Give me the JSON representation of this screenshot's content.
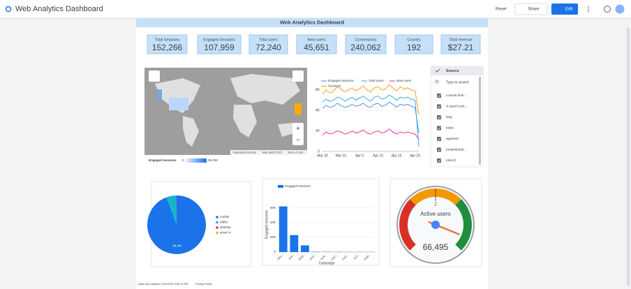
{
  "header": {
    "title": "Web Analytics Dashboard",
    "buttons": [
      "Reset",
      "Share",
      "Edit"
    ]
  },
  "report": {
    "title": "Web Analytics Dashboard",
    "kpis": [
      {
        "label": "Total Sessions",
        "value": "152,266"
      },
      {
        "label": "Engaged Sessions",
        "value": "107,959"
      },
      {
        "label": "Total users",
        "value": "72,240"
      },
      {
        "label": "New users",
        "value": "45,651"
      },
      {
        "label": "Conversions",
        "value": "240,062"
      },
      {
        "label": "Country",
        "value": "192"
      },
      {
        "label": "Total revenue",
        "value": "$27.21"
      }
    ],
    "map": {
      "legend_title": "Engaged sessions",
      "legend_min": "0",
      "legend_max": "39,455",
      "attribution": [
        "Keyboard shortcuts",
        "Map data ©2022",
        "Terms of Use"
      ]
    },
    "source_filter": {
      "title": "Source",
      "search_placeholder": "Type to search",
      "options": [
        "console.fireb...",
        "cl.search.yah...",
        "bing",
        "baidu",
        "apptimen",
        "(unattributab...",
        "(direct)"
      ]
    },
    "footer": {
      "updated": "Data Last Updated: 4/22/2022 5:56:14 PM",
      "privacy": "Privacy Policy"
    }
  },
  "chart_data": [
    {
      "type": "line",
      "categories": [
        "Mar 26",
        null,
        null,
        null,
        null,
        "Mar 31",
        null,
        null,
        null,
        null,
        "Apr 5",
        null,
        null,
        null,
        null,
        "Apr 10",
        null,
        null,
        null,
        null,
        "Apr 15",
        null,
        null,
        null,
        null,
        "Apr 20",
        null
      ],
      "series": [
        {
          "name": "Engaged sessions",
          "color": "#4285f4",
          "values": [
            4200,
            4500,
            4300,
            4400,
            4700,
            4500,
            4300,
            4400,
            4600,
            4400,
            4500,
            4700,
            4400,
            4300,
            4600,
            4700,
            4400,
            4500,
            4800,
            4600,
            4300,
            4600,
            4500,
            4600,
            4400,
            4300,
            1800
          ]
        },
        {
          "name": "Total users",
          "color": "#26a5e0",
          "values": [
            4800,
            5100,
            4900,
            5000,
            5300,
            5200,
            4900,
            5100,
            5300,
            5000,
            5200,
            5400,
            5100,
            4900,
            5300,
            5400,
            5100,
            5200,
            5500,
            5300,
            5000,
            5300,
            5200,
            5300,
            5100,
            5000,
            500
          ]
        },
        {
          "name": "New users",
          "color": "#e91e8c",
          "values": [
            1600,
            1900,
            1700,
            1800,
            2000,
            1900,
            1700,
            1800,
            2000,
            1800,
            1900,
            2100,
            1800,
            1700,
            1900,
            2000,
            1800,
            1900,
            2200,
            1900,
            1700,
            1900,
            1800,
            1900,
            1800,
            1700,
            1200
          ]
        },
        {
          "name": "Sessions",
          "color": "#ff9800",
          "values": [
            5600,
            6000,
            5700,
            5900,
            6300,
            6100,
            5800,
            6000,
            6200,
            5900,
            6100,
            6400,
            6000,
            5800,
            6200,
            6300,
            6000,
            6100,
            6500,
            6200,
            5900,
            6300,
            6100,
            6200,
            6000,
            5900,
            3600
          ]
        }
      ],
      "ylim": [
        0,
        6600
      ],
      "yticks": [
        0,
        {
          "value": 2000,
          "label": "2K"
        },
        {
          "value": 4000,
          "label": "4K"
        },
        {
          "value": 6000,
          "label": "6K"
        }
      ],
      "grid": true
    },
    {
      "type": "pie",
      "categories": [
        "mobile",
        "tablet",
        "desktop",
        "smart tv"
      ],
      "values": [
        94.4,
        5.4,
        0.2,
        0
      ],
      "value_labels": [
        "94.4%",
        null,
        null,
        null
      ],
      "colors": [
        "#1a73e8",
        "#12b5cb",
        "#e52592",
        "#f9ab00"
      ]
    },
    {
      "type": "bar",
      "categories": [
        "(dire...",
        "(not...",
        "2005...",
        "UAC...",
        "ACE...",
        "UAC...",
        "UAC...",
        "ACI...",
        "medi..."
      ],
      "series": [
        {
          "name": "Engaged sessions",
          "color": "#1a73e8",
          "values": [
            62000,
            23000,
            9000,
            400,
            300,
            250,
            200,
            150,
            100
          ]
        }
      ],
      "ylim": [
        0,
        75000
      ],
      "yticks": [
        0,
        {
          "value": 20000,
          "label": "20K"
        },
        {
          "value": 40000,
          "label": "40K"
        },
        {
          "value": 60000,
          "label": "60K"
        }
      ],
      "xlabel": "Campaign",
      "ylabel": "Engaged sessions",
      "grid": true
    },
    {
      "type": "gauge",
      "title": "Active users",
      "value": 66495,
      "value_label": "66,495",
      "tick_label": "2",
      "bands": [
        "#d93025",
        "#f29900",
        "#1e8e3e"
      ]
    }
  ]
}
